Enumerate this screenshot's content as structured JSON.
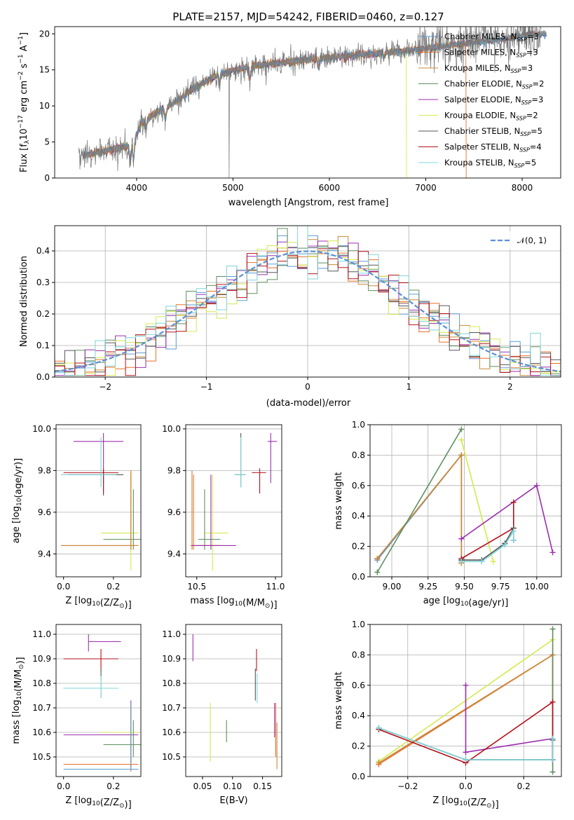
{
  "colors": {
    "chabrier_miles": "#5b9bd5",
    "salpeter_miles": "#e8702a",
    "kroupa_miles": "#c8893a",
    "chabrier_elodie": "#5f8f5f",
    "salpeter_elodie": "#9b2fae",
    "kroupa_elodie": "#d4ea4f",
    "chabrier_stelib": "#555555",
    "salpeter_stelib": "#b5121b",
    "kroupa_stelib": "#7fd4d8",
    "gaussian": "#5b8fd4",
    "grid": "#b0b0b0",
    "spec_grey": "#777777"
  },
  "legend_spectrum": [
    {
      "label": "Chabrier MILES, N",
      "sub": "SSP",
      "val": "=3",
      "color": "#5b9bd5"
    },
    {
      "label": "Salpeter MILES, N",
      "sub": "SSP",
      "val": "=3",
      "color": "#e8702a"
    },
    {
      "label": "Kroupa MILES, N",
      "sub": "SSP",
      "val": "=3",
      "color": "#c8893a"
    },
    {
      "label": "Chabrier ELODIE, N",
      "sub": "SSP",
      "val": "=2",
      "color": "#5f8f5f"
    },
    {
      "label": "Salpeter ELODIE, N",
      "sub": "SSP",
      "val": "=3",
      "color": "#9b2fae"
    },
    {
      "label": "Kroupa ELODIE, N",
      "sub": "SSP",
      "val": "=2",
      "color": "#d4ea4f"
    },
    {
      "label": "Chabrier STELIB, N",
      "sub": "SSP",
      "val": "=5",
      "color": "#555555"
    },
    {
      "label": "Salpeter STELIB, N",
      "sub": "SSP",
      "val": "=4",
      "color": "#b5121b"
    },
    {
      "label": "Kroupa STELIB, N",
      "sub": "SSP",
      "val": "=5",
      "color": "#7fd4d8"
    }
  ],
  "chart_data": [
    {
      "id": "spectrum",
      "type": "line",
      "title": "PLATE=2157, MJD=54242, FIBERID=0460, z=0.127",
      "xlabel": "wavelength [Angstrom, rest frame]",
      "ylabel": "Flux [f_λ10^-17 erg cm^-2 s^-1 A^-1]",
      "xlim": [
        3150,
        8400
      ],
      "ylim": [
        0,
        21
      ],
      "xticks": [
        4000,
        5000,
        6000,
        7000,
        8000
      ],
      "yticks": [
        0,
        5,
        10,
        15,
        20
      ],
      "continuum": {
        "x": [
          3400,
          3600,
          3800,
          3950,
          4050,
          4250,
          4400,
          4600,
          4800,
          5000,
          5200,
          5500,
          5800,
          6100,
          6400,
          6700,
          7000,
          7300,
          7600,
          7900,
          8200
        ],
        "y": [
          3.0,
          3.5,
          4.2,
          4.5,
          7.5,
          9.5,
          10.5,
          12.5,
          14.0,
          15.0,
          15.5,
          16.0,
          16.5,
          16.8,
          17.2,
          17.5,
          18.0,
          18.5,
          19.0,
          19.5,
          20.0
        ]
      },
      "model_cutoffs": [
        {
          "series": "Kroupa ELODIE",
          "x_end": 6800
        },
        {
          "series": "Salpeter MILES",
          "x_end": 7420
        }
      ]
    },
    {
      "id": "residuals",
      "type": "step-histogram",
      "xlabel": "(data-model)/error",
      "ylabel": "Normed distribution",
      "xlim": [
        -2.5,
        2.5
      ],
      "ylim": [
        0,
        0.48
      ],
      "xticks": [
        -2,
        -1,
        0,
        1,
        2
      ],
      "yticks": [
        0.0,
        0.1,
        0.2,
        0.3,
        0.4
      ],
      "bin_width": 0.1,
      "reference": "N(0,1)",
      "legend": "𝒩(0, 1)"
    },
    {
      "id": "z_age",
      "type": "errorbar",
      "xlabel": "Z [log10(Z/Z⊙)]",
      "ylabel": "age [log10(age/yr)]",
      "xlim": [
        -0.03,
        0.31
      ],
      "ylim": [
        9.29,
        10.02
      ],
      "xticks": [
        0.0,
        0.2
      ],
      "yticks": [
        9.4,
        9.6,
        9.8,
        10.0
      ],
      "points": [
        {
          "x": 0.1,
          "xe": [
            0.0,
            0.0
          ],
          "y": 9.78,
          "ye": [
            0.0,
            0.0
          ],
          "series": "Chabrier MILES"
        },
        {
          "x": 0.16,
          "xe": [
            0.12,
            0.08
          ],
          "y": 9.94,
          "ye": [
            0.2,
            0.04
          ],
          "series": "Salpeter ELODIE"
        },
        {
          "x": 0.16,
          "xe": [
            0.14,
            0.08
          ],
          "y": 9.78,
          "ye": [
            0.1,
            0.02
          ],
          "series": "Chabrier STELIB"
        },
        {
          "x": 0.16,
          "xe": [
            0.16,
            0.06
          ],
          "y": 9.79,
          "ye": [
            0.1,
            0.02
          ],
          "series": "Salpeter STELIB"
        },
        {
          "x": 0.15,
          "xe": [
            0.16,
            0.06
          ],
          "y": 9.78,
          "ye": [
            0.06,
            0.18
          ],
          "series": "Kroupa STELIB"
        },
        {
          "x": 0.27,
          "xe": [
            0.12,
            0.03
          ],
          "y": 9.5,
          "ye": [
            0.18,
            0.3
          ],
          "series": "Kroupa ELODIE"
        },
        {
          "x": 0.28,
          "xe": [
            0.12,
            0.03
          ],
          "y": 9.47,
          "ye": [
            0.05,
            0.24
          ],
          "series": "Chabrier ELODIE"
        },
        {
          "x": 0.27,
          "xe": [
            0.28,
            0.03
          ],
          "y": 9.44,
          "ye": [
            0.02,
            0.36
          ],
          "series": "Salpeter MILES"
        },
        {
          "x": 0.27,
          "xe": [
            0.28,
            0.03
          ],
          "y": 9.44,
          "ye": [
            0.02,
            0.34
          ],
          "series": "Kroupa MILES"
        }
      ]
    },
    {
      "id": "mass_age",
      "type": "errorbar",
      "xlabel": "mass [log10(M/M⊙)]",
      "ylabel": "",
      "xlim": [
        10.43,
        11.04
      ],
      "ylim": [
        9.29,
        10.02
      ],
      "xticks": [
        10.5,
        11.0
      ],
      "yticks": [
        9.4,
        9.6,
        9.8,
        10.0
      ],
      "points": [
        {
          "x": 10.97,
          "xe": [
            0.02,
            0.04
          ],
          "y": 9.94,
          "ye": [
            0.2,
            0.04
          ],
          "series": "Salpeter ELODIE"
        },
        {
          "x": 10.9,
          "xe": [
            0.05,
            0.04
          ],
          "y": 9.79,
          "ye": [
            0.1,
            0.02
          ],
          "series": "Salpeter STELIB"
        },
        {
          "x": 10.78,
          "xe": [
            0.04,
            0.03
          ],
          "y": 9.78,
          "ye": [
            0.06,
            0.2
          ],
          "series": "Chabrier STELIB"
        },
        {
          "x": 10.78,
          "xe": [
            0.04,
            0.03
          ],
          "y": 9.78,
          "ye": [
            0.06,
            0.18
          ],
          "series": "Kroupa STELIB"
        },
        {
          "x": 10.6,
          "xe": [
            0.05,
            0.1
          ],
          "y": 9.5,
          "ye": [
            0.18,
            0.28
          ],
          "series": "Kroupa ELODIE"
        },
        {
          "x": 10.55,
          "xe": [
            0.04,
            0.1
          ],
          "y": 9.47,
          "ye": [
            0.05,
            0.24
          ],
          "series": "Chabrier ELODIE"
        },
        {
          "x": 10.47,
          "xe": [
            0.01,
            0.2
          ],
          "y": 9.44,
          "ye": [
            0.02,
            0.36
          ],
          "series": "Salpeter MILES"
        },
        {
          "x": 10.48,
          "xe": [
            0.01,
            0.16
          ],
          "y": 9.44,
          "ye": [
            0.02,
            0.34
          ],
          "series": "Kroupa MILES"
        },
        {
          "x": 10.59,
          "xe": [
            0.12,
            0.16
          ],
          "y": 9.44,
          "ye": [
            0.02,
            0.34
          ],
          "series": "Salpeter ELODIE"
        }
      ]
    },
    {
      "id": "age_weight",
      "type": "line",
      "xlabel": "age [log10(age/yr)]",
      "ylabel": "mass weight",
      "xlim": [
        8.85,
        10.17
      ],
      "ylim": [
        0,
        1.0
      ],
      "xticks": [
        9.0,
        9.25,
        9.5,
        9.75,
        10.0
      ],
      "yticks": [
        0.0,
        0.2,
        0.4,
        0.6,
        0.8,
        1.0
      ],
      "grid": true,
      "series": [
        {
          "name": "Chabrier MILES",
          "x": [
            8.9,
            9.48,
            9.48
          ],
          "y": [
            0.11,
            0.8,
            0.11
          ]
        },
        {
          "name": "Salpeter MILES",
          "x": [
            8.9,
            9.48,
            9.48
          ],
          "y": [
            0.12,
            0.8,
            0.09
          ]
        },
        {
          "name": "Kroupa MILES",
          "x": [
            8.9,
            9.48,
            9.48
          ],
          "y": [
            0.12,
            0.8,
            0.09
          ]
        },
        {
          "name": "Chabrier ELODIE",
          "x": [
            8.9,
            9.48
          ],
          "y": [
            0.03,
            0.97
          ]
        },
        {
          "name": "Kroupa ELODIE",
          "x": [
            9.48,
            9.7
          ],
          "y": [
            0.9,
            0.1
          ]
        },
        {
          "name": "Salpeter ELODIE",
          "x": [
            9.48,
            10.0,
            10.11
          ],
          "y": [
            0.25,
            0.6,
            0.16
          ]
        },
        {
          "name": "Salpeter STELIB",
          "x": [
            9.48,
            9.84,
            9.84
          ],
          "y": [
            0.12,
            0.32,
            0.49
          ]
        },
        {
          "name": "Chabrier STELIB",
          "x": [
            9.48,
            9.62,
            9.78,
            9.84,
            9.84
          ],
          "y": [
            0.11,
            0.11,
            0.22,
            0.32,
            0.24
          ]
        },
        {
          "name": "Kroupa STELIB",
          "x": [
            9.48,
            9.62,
            9.78,
            9.84,
            9.84
          ],
          "y": [
            0.1,
            0.1,
            0.21,
            0.3,
            0.24
          ]
        }
      ]
    },
    {
      "id": "z_mass",
      "type": "errorbar",
      "xlabel": "Z [log10(Z/Z⊙)]",
      "ylabel": "mass [log10(M/M⊙)]",
      "xlim": [
        -0.03,
        0.31
      ],
      "ylim": [
        10.42,
        11.04
      ],
      "xticks": [
        0.0,
        0.2
      ],
      "yticks": [
        10.5,
        10.6,
        10.7,
        10.8,
        10.9,
        11.0
      ],
      "points": [
        {
          "x": 0.1,
          "xe": [
            0.0,
            0.13
          ],
          "y": 10.97,
          "ye": [
            0.04,
            0.03
          ],
          "series": "Salpeter ELODIE"
        },
        {
          "x": 0.15,
          "xe": [
            0.15,
            0.07
          ],
          "y": 10.9,
          "ye": [
            0.05,
            0.04
          ],
          "series": "Salpeter STELIB"
        },
        {
          "x": 0.15,
          "xe": [
            0.15,
            0.07
          ],
          "y": 10.78,
          "ye": [
            0.04,
            0.08
          ],
          "series": "Chabrier STELIB"
        },
        {
          "x": 0.15,
          "xe": [
            0.15,
            0.07
          ],
          "y": 10.78,
          "ye": [
            0.04,
            0.05
          ],
          "series": "Kroupa STELIB"
        },
        {
          "x": 0.27,
          "xe": [
            0.27,
            0.03
          ],
          "y": 10.59,
          "ye": [
            0.13,
            0.14
          ],
          "series": "Salpeter ELODIE"
        },
        {
          "x": 0.27,
          "xe": [
            0.12,
            0.03
          ],
          "y": 10.6,
          "ye": [
            0.1,
            0.12
          ],
          "series": "Kroupa ELODIE"
        },
        {
          "x": 0.28,
          "xe": [
            0.12,
            0.03
          ],
          "y": 10.55,
          "ye": [
            0.05,
            0.1
          ],
          "series": "Chabrier ELODIE"
        },
        {
          "x": 0.27,
          "xe": [
            0.27,
            0.03
          ],
          "y": 10.47,
          "ye": [
            0.03,
            0.25
          ],
          "series": "Salpeter MILES"
        },
        {
          "x": 0.27,
          "xe": [
            0.27,
            0.03
          ],
          "y": 10.45,
          "ye": [
            0.0,
            0.27
          ],
          "series": "Chabrier MILES"
        }
      ]
    },
    {
      "id": "ebv_mass",
      "type": "errorbar",
      "xlabel": "E(B-V)",
      "ylabel": "",
      "xlim": [
        0.022,
        0.182
      ],
      "ylim": [
        10.42,
        11.04
      ],
      "xticks": [
        0.05,
        0.1,
        0.15
      ],
      "yticks": [
        10.5,
        10.6,
        10.7,
        10.8,
        10.9,
        11.0
      ],
      "points": [
        {
          "x": 0.034,
          "y": 10.97,
          "ye": [
            0.08,
            0.03
          ],
          "series": "Salpeter ELODIE"
        },
        {
          "x": 0.14,
          "y": 10.9,
          "ye": [
            0.05,
            0.04
          ],
          "series": "Salpeter STELIB"
        },
        {
          "x": 0.138,
          "y": 10.8,
          "ye": [
            0.07,
            0.06
          ],
          "series": "Chabrier STELIB"
        },
        {
          "x": 0.141,
          "y": 10.78,
          "ye": [
            0.06,
            0.06
          ],
          "series": "Kroupa STELIB"
        },
        {
          "x": 0.063,
          "y": 10.6,
          "ye": [
            0.12,
            0.12
          ],
          "series": "Kroupa ELODIE"
        },
        {
          "x": 0.09,
          "y": 10.6,
          "ye": [
            0.04,
            0.05
          ],
          "series": "Chabrier ELODIE"
        },
        {
          "x": 0.172,
          "y": 10.6,
          "ye": [
            0.1,
            0.12
          ],
          "series": "Salpeter MILES"
        },
        {
          "x": 0.174,
          "y": 10.55,
          "ye": [
            0.1,
            0.09
          ],
          "series": "Kroupa MILES"
        },
        {
          "x": 0.17,
          "y": 10.62,
          "ye": [
            0.04,
            0.1
          ],
          "series": "Salpeter ELODIE"
        }
      ]
    },
    {
      "id": "z_weight",
      "type": "line",
      "xlabel": "Z [log10(Z/Z⊙)]",
      "ylabel": "mass weight",
      "xlim": [
        -0.33,
        0.33
      ],
      "ylim": [
        0,
        1.0
      ],
      "xticks": [
        -0.2,
        0.0,
        0.2
      ],
      "yticks": [
        0.0,
        0.2,
        0.4,
        0.6,
        0.8,
        1.0
      ],
      "grid": true,
      "series": [
        {
          "name": "Kroupa ELODIE",
          "x": [
            -0.3,
            0.3
          ],
          "y": [
            0.1,
            0.9
          ]
        },
        {
          "name": "Salpeter MILES",
          "x": [
            -0.3,
            0.3,
            0.3
          ],
          "y": [
            0.08,
            0.8,
            0.11
          ]
        },
        {
          "name": "Kroupa MILES",
          "x": [
            -0.3,
            0.3,
            0.3
          ],
          "y": [
            0.09,
            0.8,
            0.11
          ]
        },
        {
          "name": "Chabrier ELODIE",
          "x": [
            0.3,
            0.3
          ],
          "y": [
            0.03,
            0.97
          ]
        },
        {
          "name": "Salpeter ELODIE",
          "x": [
            0.0,
            0.0,
            0.3,
            0.3
          ],
          "y": [
            0.6,
            0.16,
            0.25,
            0.11
          ]
        },
        {
          "name": "Salpeter STELIB",
          "x": [
            -0.3,
            0.0,
            0.3,
            0.3
          ],
          "y": [
            0.31,
            0.09,
            0.49,
            0.11
          ]
        },
        {
          "name": "Chabrier STELIB",
          "x": [
            -0.3,
            0.0,
            0.3,
            0.3
          ],
          "y": [
            0.32,
            0.11,
            0.11,
            0.24
          ]
        },
        {
          "name": "Kroupa STELIB",
          "x": [
            -0.3,
            0.0,
            0.3,
            0.3
          ],
          "y": [
            0.32,
            0.11,
            0.11,
            0.25
          ]
        }
      ]
    }
  ]
}
